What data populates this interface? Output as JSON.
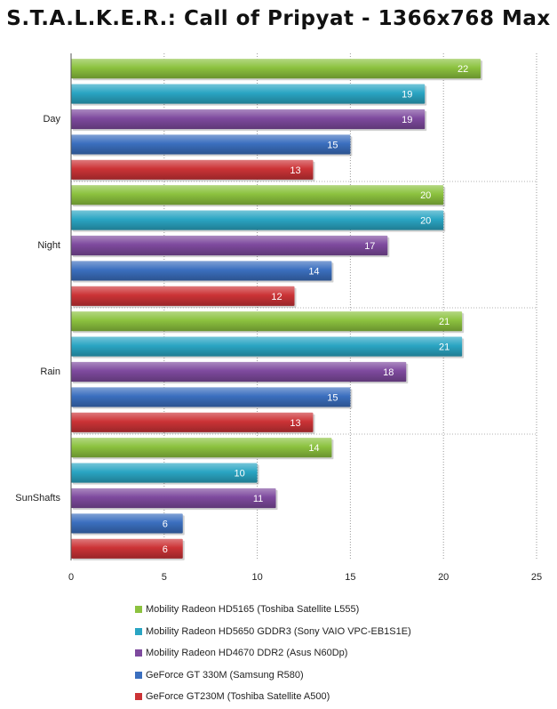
{
  "chart_data": {
    "type": "bar",
    "orientation": "horizontal",
    "title": "S.T.A.L.K.E.R.: Call of Pripyat - 1366x768 Max",
    "categories": [
      "Day",
      "Night",
      "Rain",
      "SunShafts"
    ],
    "series": [
      {
        "name": "Mobility Radeon HD5165 (Toshiba Satellite L555)",
        "color": "#8cc23f",
        "values": [
          22,
          20,
          21,
          14
        ]
      },
      {
        "name": "Mobility Radeon HD5650 GDDR3 (Sony VAIO VPC-EB1S1E)",
        "color": "#2aa5c3",
        "values": [
          19,
          20,
          21,
          10
        ]
      },
      {
        "name": "Mobility Radeon HD4670 DDR2 (Asus N60Dp)",
        "color": "#7e4a9e",
        "values": [
          19,
          17,
          18,
          11
        ]
      },
      {
        "name": "GeForce GT 330M (Samsung R580)",
        "color": "#3b6fbf",
        "values": [
          15,
          14,
          15,
          6
        ]
      },
      {
        "name": "GeForce GT230M (Toshiba Satellite A500)",
        "color": "#cc3336",
        "values": [
          13,
          12,
          13,
          6
        ]
      }
    ],
    "xlim": [
      0,
      25
    ],
    "xticks": [
      "0",
      "5",
      "10",
      "15",
      "20",
      "25"
    ],
    "grid": true,
    "legend_position": "bottom"
  }
}
